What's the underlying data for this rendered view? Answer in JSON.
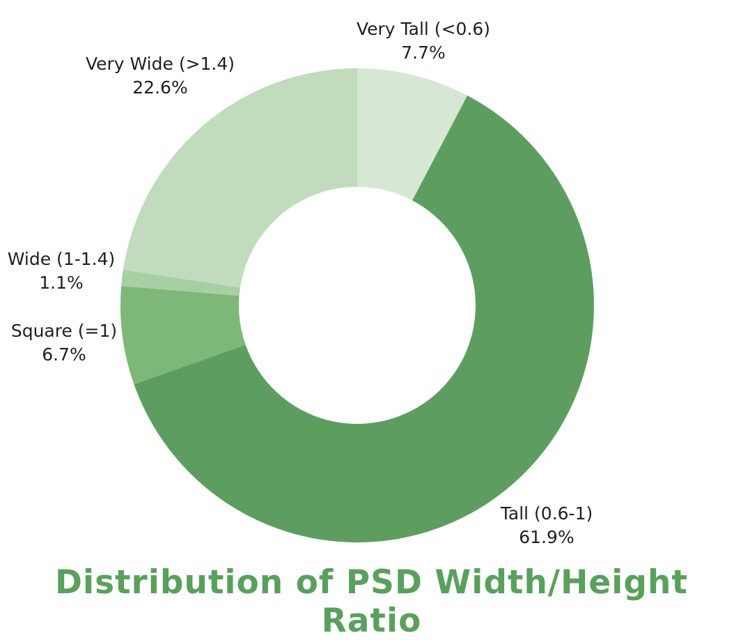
{
  "chart_data": {
    "type": "pie",
    "donut": true,
    "title": "Distribution of PSD Width/Height Ratio",
    "slices": [
      {
        "label": "Very Tall (<0.6)",
        "value": 7.7,
        "value_label": "7.7%",
        "color": "#d6e8d4"
      },
      {
        "label": "Tall (0.6-1)",
        "value": 61.9,
        "value_label": "61.9%",
        "color": "#5d9e60"
      },
      {
        "label": "Square (=1)",
        "value": 6.7,
        "value_label": "6.7%",
        "color": "#7db879"
      },
      {
        "label": "Wide (1-1.4)",
        "value": 1.1,
        "value_label": "1.1%",
        "color": "#a8cfa4"
      },
      {
        "label": "Very Wide (>1.4)",
        "value": 22.6,
        "value_label": "22.6%",
        "color": "#c1dcbd"
      }
    ],
    "start_angle": "12 o'clock",
    "direction": "clockwise",
    "legend": "none"
  }
}
